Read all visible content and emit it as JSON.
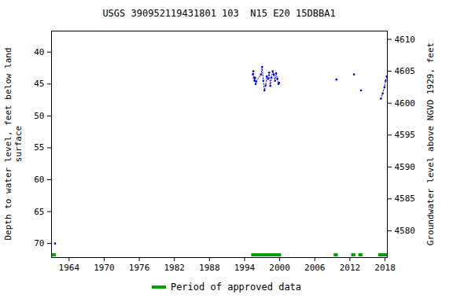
{
  "chart_data": {
    "type": "line",
    "title": "USGS 390952119431801 103  N15 E20 15DBBA1",
    "ylabel": "Depth to water level, feet below land surface",
    "y2label": "Groundwater level above NGVD 1929, feet",
    "xlim": [
      1961.0,
      2018.4
    ],
    "xticks": [
      1964,
      1970,
      1976,
      1982,
      1988,
      1994,
      2000,
      2006,
      2012,
      2018
    ],
    "ylim": [
      36.7,
      72.2
    ],
    "yticks": [
      40,
      45,
      50,
      55,
      60,
      65,
      70
    ],
    "y2lim": [
      4611.3,
      4575.8
    ],
    "y2ticks": [
      4580,
      4585,
      4590,
      4595,
      4600,
      4605,
      4610
    ],
    "grid": false,
    "x": [
      1961.6,
      1980,
      1995.4,
      1995.5,
      1995.6,
      1995.7,
      1995.8,
      1995.9,
      1996.0,
      1996.8,
      1997.0,
      1997.2,
      1997.4,
      1997.6,
      1997.8,
      1998.0,
      1998.2,
      1998.4,
      1998.6,
      1998.8,
      1999.0,
      1999.2,
      1999.4,
      1999.6,
      1999.8,
      1999.9,
      2005,
      2009.7,
      2011,
      2012.7,
      2013.3,
      2013.9,
      2015.5,
      2017.3,
      2017.6,
      2017.9,
      2018.1,
      2018.3
    ],
    "series": [
      {
        "name": "Depth to water level",
        "color": "#0000ff",
        "marker": "point",
        "line_style": "dotted",
        "values": [
          70.0,
          null,
          43.5,
          43.0,
          44.0,
          44.5,
          44.0,
          45.0,
          44.6,
          43.5,
          42.3,
          44.5,
          46.0,
          45.2,
          43.8,
          44.2,
          43.2,
          45.3,
          44.0,
          43.0,
          43.5,
          44.5,
          43.3,
          44.2,
          45.0,
          44.8,
          null,
          44.3,
          null,
          43.5,
          null,
          46.0,
          null,
          47.3,
          46.5,
          45.5,
          44.5,
          43.8
        ]
      }
    ],
    "approved_label": "Period of approved data",
    "approved_color": "#00a000",
    "approved_periods": [
      [
        1961.1,
        1961.8
      ],
      [
        1995.2,
        2000.3
      ],
      [
        2009.3,
        2010.0
      ],
      [
        2012.3,
        2013.0
      ],
      [
        2013.5,
        2014.2
      ],
      [
        2016.9,
        2018.4
      ]
    ]
  }
}
